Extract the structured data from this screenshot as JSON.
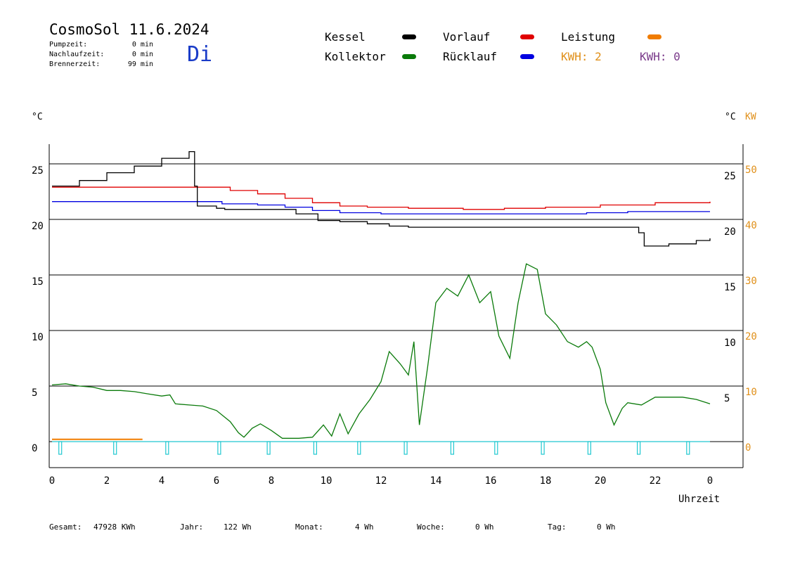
{
  "header": {
    "title": "CosmoSol 11.6.2024",
    "weekday": "Di",
    "stats": [
      {
        "label": "Pumpzeit:",
        "value": "0 min"
      },
      {
        "label": "Nachlaufzeit:",
        "value": "0 min"
      },
      {
        "label": "Brennerzeit:",
        "value": "99 min"
      }
    ]
  },
  "legend": {
    "items": [
      {
        "label": "Kessel",
        "color": "#000000"
      },
      {
        "label": "Kollektor",
        "color": "#0a7a0a"
      },
      {
        "label": "Vorlauf",
        "color": "#e00000"
      },
      {
        "label": "Rücklauf",
        "color": "#0000e0"
      },
      {
        "label": "Leistung",
        "color": "#f07c00"
      }
    ],
    "kwh_1": "KWH: 2",
    "kwh_1_color": "#e0901a",
    "kwh_2": "KWH: 0",
    "kwh_2_color": "#7a3a8a"
  },
  "footer": {
    "gesamt_label": "Gesamt:",
    "gesamt_value": "47928 KWh",
    "jahr_label": "Jahr:",
    "jahr_value": "122 Wh",
    "monat_label": "Monat:",
    "monat_value": "4 Wh",
    "woche_label": "Woche:",
    "woche_value": "0 Wh",
    "tag_label": "Tag:",
    "tag_value": "0 Wh"
  },
  "chart_data": {
    "type": "line",
    "xlabel": "Uhrzeit",
    "x_ticks": [
      "0",
      "2",
      "4",
      "6",
      "8",
      "10",
      "12",
      "14",
      "16",
      "18",
      "20",
      "22",
      "0"
    ],
    "xlim": [
      0,
      24
    ],
    "left_axis": {
      "unit": "°C",
      "ticks": [
        "25",
        "20",
        "15",
        "10",
        "5",
        "0"
      ],
      "ylim": [
        -2,
        27
      ]
    },
    "right_axis": {
      "unit": "°C",
      "ticks": [
        "25",
        "20",
        "15",
        "10",
        "5"
      ],
      "ylim": [
        -2,
        27
      ]
    },
    "kw_axis": {
      "unit": "KW",
      "ticks": [
        "50",
        "40",
        "30",
        "20",
        "10",
        "0"
      ],
      "color": "#e0901a"
    },
    "grid": "horizontal",
    "series": [
      {
        "name": "Kessel",
        "color": "#000000",
        "points": [
          [
            0,
            23
          ],
          [
            1,
            23.5
          ],
          [
            2,
            24.2
          ],
          [
            3,
            24.8
          ],
          [
            4,
            25.5
          ],
          [
            5,
            26.1
          ],
          [
            5.05,
            26.1
          ],
          [
            5.2,
            23
          ],
          [
            5.3,
            21.2
          ],
          [
            6,
            21
          ],
          [
            6.3,
            20.9
          ],
          [
            7,
            20.9
          ],
          [
            8,
            20.9
          ],
          [
            8.6,
            20.9
          ],
          [
            8.9,
            20.5
          ],
          [
            9.5,
            20.5
          ],
          [
            9.7,
            19.9
          ],
          [
            10.5,
            19.8
          ],
          [
            11.5,
            19.6
          ],
          [
            12.3,
            19.4
          ],
          [
            13,
            19.3
          ],
          [
            15,
            19.3
          ],
          [
            17,
            19.3
          ],
          [
            19,
            19.3
          ],
          [
            21.3,
            19.3
          ],
          [
            21.4,
            18.8
          ],
          [
            21.6,
            17.6
          ],
          [
            22.5,
            17.8
          ],
          [
            23.5,
            18.1
          ],
          [
            24,
            18.3
          ]
        ]
      },
      {
        "name": "Vorlauf",
        "color": "#e00000",
        "points": [
          [
            0,
            22.9
          ],
          [
            3,
            22.9
          ],
          [
            5,
            22.9
          ],
          [
            5.6,
            22.9
          ],
          [
            6.5,
            22.6
          ],
          [
            7.5,
            22.3
          ],
          [
            8.5,
            21.9
          ],
          [
            9.5,
            21.5
          ],
          [
            10.5,
            21.2
          ],
          [
            11.5,
            21.1
          ],
          [
            13,
            21
          ],
          [
            15,
            20.9
          ],
          [
            16.5,
            21
          ],
          [
            18,
            21.1
          ],
          [
            20,
            21.3
          ],
          [
            22,
            21.5
          ],
          [
            24,
            21.6
          ]
        ]
      },
      {
        "name": "Rücklauf",
        "color": "#0000e0",
        "points": [
          [
            0,
            21.6
          ],
          [
            5,
            21.6
          ],
          [
            6.2,
            21.4
          ],
          [
            7.5,
            21.3
          ],
          [
            8.5,
            21.1
          ],
          [
            9.5,
            20.8
          ],
          [
            10.5,
            20.6
          ],
          [
            12,
            20.5
          ],
          [
            14,
            20.5
          ],
          [
            16,
            20.5
          ],
          [
            18,
            20.5
          ],
          [
            19.5,
            20.6
          ],
          [
            21,
            20.7
          ],
          [
            24,
            20.7
          ]
        ]
      },
      {
        "name": "Kollektor",
        "color": "#0a7a0a",
        "points": [
          [
            0,
            5.1
          ],
          [
            0.5,
            5.2
          ],
          [
            1,
            5
          ],
          [
            1.5,
            4.9
          ],
          [
            2,
            4.6
          ],
          [
            2.5,
            4.6
          ],
          [
            3,
            4.5
          ],
          [
            3.5,
            4.3
          ],
          [
            4,
            4.1
          ],
          [
            4.3,
            4.2
          ],
          [
            4.5,
            3.4
          ],
          [
            5,
            3.3
          ],
          [
            5.5,
            3.2
          ],
          [
            6,
            2.8
          ],
          [
            6.5,
            1.8
          ],
          [
            6.8,
            0.8
          ],
          [
            7,
            0.4
          ],
          [
            7.3,
            1.2
          ],
          [
            7.6,
            1.6
          ],
          [
            8,
            1
          ],
          [
            8.4,
            0.3
          ],
          [
            9,
            0.3
          ],
          [
            9.5,
            0.4
          ],
          [
            9.9,
            1.5
          ],
          [
            10.2,
            0.5
          ],
          [
            10.5,
            2.5
          ],
          [
            10.8,
            0.7
          ],
          [
            11.2,
            2.5
          ],
          [
            11.6,
            3.8
          ],
          [
            12,
            5.4
          ],
          [
            12.3,
            8.1
          ],
          [
            12.7,
            7
          ],
          [
            13,
            6
          ],
          [
            13.2,
            9
          ],
          [
            13.4,
            1.5
          ],
          [
            13.7,
            6.7
          ],
          [
            14,
            12.5
          ],
          [
            14.4,
            13.8
          ],
          [
            14.8,
            13.1
          ],
          [
            15.2,
            15
          ],
          [
            15.6,
            12.5
          ],
          [
            16,
            13.5
          ],
          [
            16.3,
            9.5
          ],
          [
            16.7,
            7.5
          ],
          [
            17,
            12.5
          ],
          [
            17.3,
            16
          ],
          [
            17.7,
            15.5
          ],
          [
            18,
            11.5
          ],
          [
            18.4,
            10.5
          ],
          [
            18.8,
            9
          ],
          [
            19.2,
            8.5
          ],
          [
            19.5,
            9
          ],
          [
            19.7,
            8.5
          ],
          [
            20,
            6.5
          ],
          [
            20.2,
            3.5
          ],
          [
            20.5,
            1.5
          ],
          [
            20.8,
            3
          ],
          [
            21,
            3.5
          ],
          [
            21.5,
            3.3
          ],
          [
            22,
            4
          ],
          [
            22.5,
            4
          ],
          [
            23,
            4
          ],
          [
            23.5,
            3.8
          ],
          [
            24,
            3.4
          ]
        ]
      },
      {
        "name": "Leistung",
        "color": "#f07c00",
        "points": [
          [
            0,
            0.2
          ],
          [
            1,
            0.2
          ],
          [
            2,
            0.2
          ],
          [
            3,
            0.2
          ],
          [
            3.3,
            0.2
          ]
        ]
      }
    ]
  }
}
